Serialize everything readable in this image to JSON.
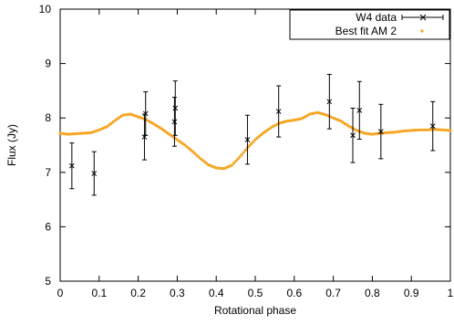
{
  "chart_data": {
    "type": "scatter",
    "title": "",
    "xlabel": "Rotational phase",
    "ylabel": "Flux (Jy)",
    "xlim": [
      0,
      1
    ],
    "ylim": [
      5,
      10
    ],
    "x_ticks": [
      0,
      0.1,
      0.2,
      0.3,
      0.4,
      0.5,
      0.6,
      0.7,
      0.8,
      0.9,
      1
    ],
    "x_tick_labels": [
      "0",
      "0.1",
      "0.2",
      "0.3",
      "0.4",
      "0.5",
      "0.6",
      "0.7",
      "0.8",
      "0.9",
      "1"
    ],
    "y_ticks": [
      5,
      6,
      7,
      8,
      9,
      10
    ],
    "y_tick_labels": [
      "5",
      "6",
      "7",
      "8",
      "9",
      "10"
    ],
    "grid": false,
    "legend_position": "top-right",
    "series": [
      {
        "name": "W4 data",
        "kind": "errorbar",
        "marker": "x",
        "color": "#000000",
        "points": [
          {
            "x": 0.03,
            "y": 7.12,
            "err": 0.42
          },
          {
            "x": 0.087,
            "y": 6.98,
            "err": 0.4
          },
          {
            "x": 0.216,
            "y": 7.65,
            "err": 0.42
          },
          {
            "x": 0.219,
            "y": 8.08,
            "err": 0.4
          },
          {
            "x": 0.293,
            "y": 7.93,
            "err": 0.45
          },
          {
            "x": 0.295,
            "y": 8.18,
            "err": 0.5
          },
          {
            "x": 0.48,
            "y": 7.6,
            "err": 0.45
          },
          {
            "x": 0.56,
            "y": 8.12,
            "err": 0.47
          },
          {
            "x": 0.69,
            "y": 8.3,
            "err": 0.5
          },
          {
            "x": 0.75,
            "y": 7.68,
            "err": 0.5
          },
          {
            "x": 0.767,
            "y": 8.14,
            "err": 0.53
          },
          {
            "x": 0.822,
            "y": 7.75,
            "err": 0.5
          },
          {
            "x": 0.955,
            "y": 7.85,
            "err": 0.45
          }
        ]
      },
      {
        "name": "Best fit AM 2",
        "kind": "points",
        "marker": "dot",
        "color": "#f5a623",
        "curve": [
          [
            0.0,
            7.72
          ],
          [
            0.02,
            7.7
          ],
          [
            0.04,
            7.71
          ],
          [
            0.06,
            7.72
          ],
          [
            0.08,
            7.73
          ],
          [
            0.1,
            7.78
          ],
          [
            0.12,
            7.84
          ],
          [
            0.14,
            7.95
          ],
          [
            0.16,
            8.05
          ],
          [
            0.18,
            8.07
          ],
          [
            0.2,
            8.02
          ],
          [
            0.22,
            7.97
          ],
          [
            0.24,
            7.89
          ],
          [
            0.26,
            7.8
          ],
          [
            0.28,
            7.7
          ],
          [
            0.3,
            7.6
          ],
          [
            0.32,
            7.5
          ],
          [
            0.34,
            7.38
          ],
          [
            0.36,
            7.25
          ],
          [
            0.38,
            7.14
          ],
          [
            0.4,
            7.08
          ],
          [
            0.42,
            7.07
          ],
          [
            0.44,
            7.13
          ],
          [
            0.46,
            7.28
          ],
          [
            0.48,
            7.45
          ],
          [
            0.5,
            7.6
          ],
          [
            0.52,
            7.72
          ],
          [
            0.54,
            7.82
          ],
          [
            0.56,
            7.9
          ],
          [
            0.58,
            7.94
          ],
          [
            0.6,
            7.96
          ],
          [
            0.62,
            7.99
          ],
          [
            0.64,
            8.07
          ],
          [
            0.66,
            8.1
          ],
          [
            0.68,
            8.06
          ],
          [
            0.7,
            8.0
          ],
          [
            0.72,
            7.94
          ],
          [
            0.74,
            7.85
          ],
          [
            0.76,
            7.77
          ],
          [
            0.78,
            7.72
          ],
          [
            0.8,
            7.7
          ],
          [
            0.82,
            7.72
          ],
          [
            0.84,
            7.73
          ],
          [
            0.86,
            7.74
          ],
          [
            0.88,
            7.76
          ],
          [
            0.9,
            7.77
          ],
          [
            0.92,
            7.78
          ],
          [
            0.94,
            7.78
          ],
          [
            0.96,
            7.79
          ],
          [
            0.98,
            7.78
          ],
          [
            1.0,
            7.77
          ]
        ]
      }
    ]
  }
}
